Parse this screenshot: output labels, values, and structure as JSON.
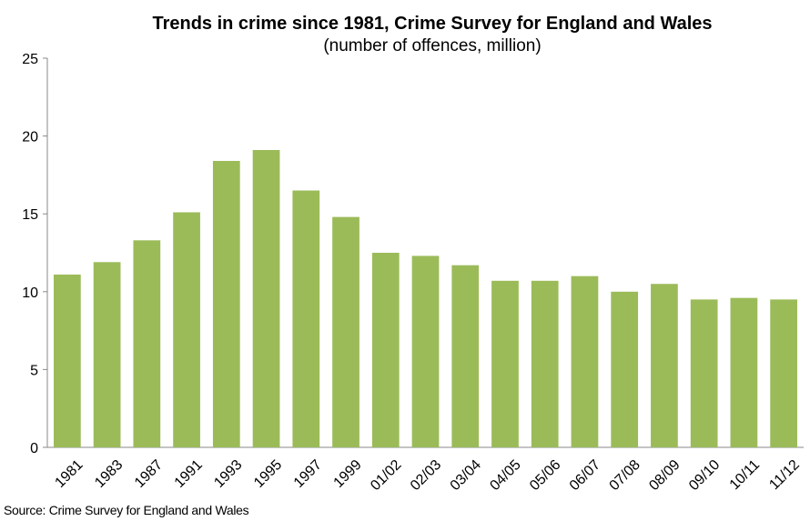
{
  "chart_data": {
    "type": "bar",
    "title": "Trends in crime since 1981, Crime Survey for England and Wales",
    "subtitle": "(number of offences, million)",
    "source": "Source: Crime Survey for England and Wales",
    "categories": [
      "1981",
      "1983",
      "1987",
      "1991",
      "1993",
      "1995",
      "1997",
      "1999",
      "01/02",
      "02/03",
      "03/04",
      "04/05",
      "05/06",
      "06/07",
      "07/08",
      "08/09",
      "09/10",
      "10/11",
      "11/12"
    ],
    "values": [
      11.1,
      11.9,
      13.3,
      15.1,
      18.4,
      19.1,
      16.5,
      14.8,
      12.5,
      12.3,
      11.7,
      10.7,
      10.7,
      11.0,
      10.0,
      10.5,
      9.5,
      9.6,
      9.5
    ],
    "ylim": [
      0,
      25
    ],
    "yticks": [
      0,
      5,
      10,
      15,
      20,
      25
    ],
    "bar_color": "#9bbb59",
    "grid": false,
    "legend": "none"
  }
}
